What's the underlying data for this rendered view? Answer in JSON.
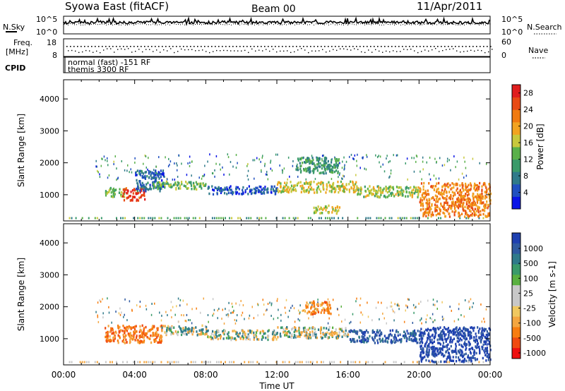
{
  "header": {
    "site": "Syowa East (fitACF)",
    "beam": "Beam 00",
    "date": "11/Apr/2011"
  },
  "strips": {
    "nsky_label": "N.Sky",
    "nsearch_label": "N.Search",
    "nsky_ticks": [
      "10^5",
      "10^0"
    ],
    "nsearch_ticks": [
      "10^5",
      "10^0"
    ],
    "freq_label_1": "Freq.",
    "freq_label_2": "[MHz]",
    "freq_ticks": [
      "18",
      "8"
    ],
    "nave_label": "Nave",
    "nave_ticks": [
      "60",
      "0"
    ],
    "cpid_label": "CPID",
    "cpid_lines": [
      "normal (fast) -151 RF",
      "themis 3300 RF"
    ]
  },
  "colors": {
    "power_scale": [
      "#0a14e6",
      "#2050c0",
      "#2f7a8a",
      "#3a9a6a",
      "#5ab04a",
      "#c8c83c",
      "#f2a320",
      "#f07a10",
      "#e84a14",
      "#e01e1e"
    ],
    "velocity_scale": [
      "#ee1010",
      "#f04a10",
      "#f77d10",
      "#f4a640",
      "#f0c860",
      "#c8c8c8",
      "#c8c8c8",
      "#5ab040",
      "#3a9a6a",
      "#2f7a8a",
      "#2f5aa0",
      "#1e40b0"
    ]
  },
  "chart_data": [
    {
      "type": "heatmap",
      "panel": "power",
      "ylabel": "Slant Range [km]",
      "xlabel": "Time UT",
      "x_ticks": [
        "00:00",
        "04:00",
        "08:00",
        "12:00",
        "16:00",
        "20:00",
        "00:00"
      ],
      "xlim_hours": [
        0,
        24
      ],
      "ylim": [
        180,
        4600
      ],
      "y_ticks": [
        1000,
        2000,
        3000,
        4000
      ],
      "colorbar_label": "Power [dB]",
      "colorbar_ticks": [
        4,
        8,
        12,
        16,
        20,
        24,
        28
      ],
      "colorbar_range": [
        0,
        30
      ],
      "regions": [
        {
          "t": [
            2.3,
            3.4
          ],
          "r": [
            950,
            1250
          ],
          "v": 14
        },
        {
          "t": [
            3.3,
            4.6
          ],
          "r": [
            850,
            1250
          ],
          "v": 27
        },
        {
          "t": [
            4.0,
            5.6
          ],
          "r": [
            1150,
            1800
          ],
          "v": 6
        },
        {
          "t": [
            5.0,
            8.0
          ],
          "r": [
            1200,
            1450
          ],
          "v": 13
        },
        {
          "t": [
            8.0,
            12.0
          ],
          "r": [
            1050,
            1300
          ],
          "v": 5
        },
        {
          "t": [
            12.0,
            16.5
          ],
          "r": [
            1100,
            1450
          ],
          "v": 17
        },
        {
          "t": [
            14.0,
            15.5
          ],
          "r": [
            450,
            700
          ],
          "v": 17
        },
        {
          "t": [
            16.5,
            20.0
          ],
          "r": [
            950,
            1300
          ],
          "v": 15
        },
        {
          "t": [
            20.0,
            24.0
          ],
          "r": [
            350,
            1400
          ],
          "v": 22
        },
        {
          "t": [
            13.0,
            15.5
          ],
          "r": [
            1700,
            2200
          ],
          "v": 10
        }
      ]
    },
    {
      "type": "heatmap",
      "panel": "velocity",
      "ylabel": "Slant Range [km]",
      "xlabel": "Time UT",
      "x_ticks": [
        "00:00",
        "04:00",
        "08:00",
        "12:00",
        "16:00",
        "20:00",
        "00:00"
      ],
      "xlim_hours": [
        0,
        24
      ],
      "ylim": [
        180,
        4600
      ],
      "y_ticks": [
        1000,
        2000,
        3000,
        4000
      ],
      "colorbar_label": "Velocity [m s-1]",
      "colorbar_ticks": [
        1000,
        500,
        100,
        25,
        -25,
        -100,
        -500,
        -1000
      ],
      "regions": [
        {
          "t": [
            2.3,
            5.5
          ],
          "r": [
            900,
            1450
          ],
          "v": -400
        },
        {
          "t": [
            5.5,
            8.0
          ],
          "r": [
            1150,
            1450
          ],
          "v": 0
        },
        {
          "t": [
            8.0,
            12.0
          ],
          "r": [
            1000,
            1300
          ],
          "v": 0
        },
        {
          "t": [
            12.0,
            16.0
          ],
          "r": [
            1050,
            1400
          ],
          "v": 0
        },
        {
          "t": [
            16.0,
            20.0
          ],
          "r": [
            900,
            1300
          ],
          "v": 400
        },
        {
          "t": [
            20.0,
            24.0
          ],
          "r": [
            300,
            1400
          ],
          "v": 600
        },
        {
          "t": [
            13.5,
            15.0
          ],
          "r": [
            1800,
            2200
          ],
          "v": -300
        }
      ]
    }
  ]
}
